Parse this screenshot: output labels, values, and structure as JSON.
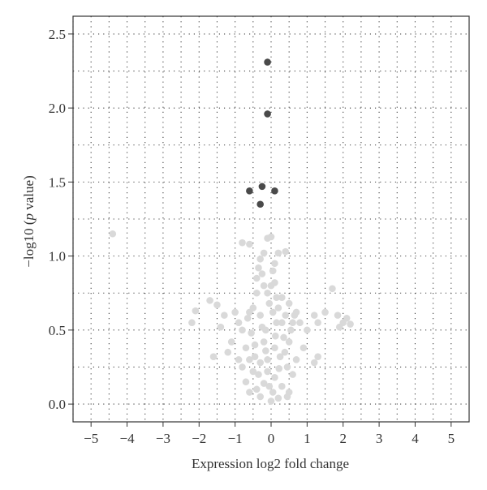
{
  "chart_data": {
    "type": "scatter",
    "title": "",
    "xlabel": "Expression log2 fold change",
    "ylabel_parts": [
      "−log10 (",
      "p",
      " value)"
    ],
    "xlim": [
      -5.5,
      5.5
    ],
    "ylim": [
      -0.12,
      2.62
    ],
    "xticks": [
      {
        "value": -5,
        "label": "−5"
      },
      {
        "value": -4,
        "label": "−4"
      },
      {
        "value": -3,
        "label": "−3"
      },
      {
        "value": -2,
        "label": "−2"
      },
      {
        "value": -1,
        "label": "−1"
      },
      {
        "value": 0,
        "label": "0"
      },
      {
        "value": 1,
        "label": "1"
      },
      {
        "value": 2,
        "label": "2"
      },
      {
        "value": 3,
        "label": "3"
      },
      {
        "value": 4,
        "label": "4"
      },
      {
        "value": 5,
        "label": "5"
      }
    ],
    "yticks": [
      {
        "value": 0.0,
        "label": "0.0"
      },
      {
        "value": 0.5,
        "label": "0.5"
      },
      {
        "value": 1.0,
        "label": "1.0"
      },
      {
        "value": 1.5,
        "label": "1.5"
      },
      {
        "value": 2.0,
        "label": "2.0"
      },
      {
        "value": 2.5,
        "label": "2.5"
      }
    ],
    "grid": {
      "x_step": 0.5,
      "y_step": 0.25,
      "style": "dotted"
    },
    "colors": {
      "significant": "#4a4a4a",
      "non_significant": "#d9d9d9",
      "grid": "#444444",
      "axis": "#333333"
    },
    "series": [
      {
        "color": "#4a4a4a",
        "points": [
          [
            -0.1,
            2.31
          ],
          [
            -0.1,
            1.96
          ],
          [
            -0.6,
            1.44
          ],
          [
            -0.25,
            1.47
          ],
          [
            0.1,
            1.44
          ],
          [
            -0.3,
            1.35
          ]
        ]
      },
      {
        "color": "#d9d9d9",
        "points": [
          [
            -4.4,
            1.15
          ],
          [
            -0.8,
            1.09
          ],
          [
            -0.6,
            1.08
          ],
          [
            -0.2,
            1.02
          ],
          [
            0.2,
            1.02
          ],
          [
            0.4,
            1.03
          ],
          [
            -0.1,
            1.12
          ],
          [
            0.0,
            1.13
          ],
          [
            -0.3,
            0.98
          ],
          [
            -0.35,
            0.92
          ],
          [
            0.1,
            0.95
          ],
          [
            -0.4,
            0.85
          ],
          [
            -0.25,
            0.88
          ],
          [
            0.05,
            0.9
          ],
          [
            0.1,
            0.82
          ],
          [
            -0.2,
            0.8
          ],
          [
            -0.4,
            0.75
          ],
          [
            0.15,
            0.72
          ],
          [
            -0.1,
            0.75
          ],
          [
            0.0,
            0.8
          ],
          [
            0.3,
            0.72
          ],
          [
            -2.2,
            0.55
          ],
          [
            -2.1,
            0.63
          ],
          [
            -1.7,
            0.7
          ],
          [
            -1.5,
            0.67
          ],
          [
            -1.3,
            0.6
          ],
          [
            -1.0,
            0.62
          ],
          [
            -0.9,
            0.55
          ],
          [
            -0.8,
            0.5
          ],
          [
            -0.6,
            0.62
          ],
          [
            -0.5,
            0.65
          ],
          [
            0.5,
            0.68
          ],
          [
            0.7,
            0.62
          ],
          [
            0.8,
            0.55
          ],
          [
            1.0,
            0.5
          ],
          [
            1.2,
            0.6
          ],
          [
            1.3,
            0.55
          ],
          [
            1.5,
            0.62
          ],
          [
            1.7,
            0.78
          ],
          [
            1.85,
            0.6
          ],
          [
            1.9,
            0.52
          ],
          [
            2.0,
            0.55
          ],
          [
            2.1,
            0.58
          ],
          [
            2.2,
            0.54
          ],
          [
            -1.4,
            0.52
          ],
          [
            0.6,
            0.55
          ],
          [
            -1.1,
            0.42
          ],
          [
            -1.2,
            0.35
          ],
          [
            -0.7,
            0.38
          ],
          [
            -0.9,
            0.3
          ],
          [
            0.5,
            0.42
          ],
          [
            0.9,
            0.38
          ],
          [
            -1.6,
            0.32
          ],
          [
            0.7,
            0.3
          ],
          [
            1.3,
            0.32
          ],
          [
            1.2,
            0.28
          ],
          [
            -0.8,
            0.25
          ],
          [
            -0.6,
            0.3
          ],
          [
            -0.5,
            0.22
          ],
          [
            0.45,
            0.25
          ],
          [
            0.6,
            0.2
          ],
          [
            -0.7,
            0.15
          ],
          [
            -0.4,
            0.1
          ],
          [
            0.3,
            0.12
          ],
          [
            0.5,
            0.08
          ],
          [
            -0.3,
            0.05
          ],
          [
            0.2,
            0.04
          ],
          [
            0.0,
            0.02
          ],
          [
            -0.2,
            0.14
          ],
          [
            0.1,
            0.18
          ],
          [
            -0.1,
            0.22
          ],
          [
            -0.3,
            0.28
          ],
          [
            0.25,
            0.32
          ],
          [
            -0.45,
            0.4
          ],
          [
            0.35,
            0.45
          ],
          [
            -0.15,
            0.5
          ],
          [
            0.15,
            0.55
          ],
          [
            -0.3,
            0.6
          ],
          [
            0.05,
            0.62
          ],
          [
            -0.05,
            0.68
          ],
          [
            0.2,
            0.65
          ],
          [
            -0.55,
            0.48
          ],
          [
            0.55,
            0.5
          ],
          [
            -0.65,
            0.58
          ],
          [
            0.65,
            0.6
          ],
          [
            -0.2,
            0.42
          ],
          [
            0.1,
            0.38
          ],
          [
            -0.1,
            0.3
          ],
          [
            0.05,
            0.08
          ],
          [
            -0.05,
            0.12
          ],
          [
            0.3,
            0.55
          ],
          [
            -0.35,
            0.2
          ],
          [
            0.4,
            0.6
          ],
          [
            -0.6,
            0.08
          ],
          [
            0.45,
            0.05
          ],
          [
            -0.15,
            0.36
          ],
          [
            0.12,
            0.46
          ],
          [
            -0.25,
            0.52
          ],
          [
            0.22,
            0.24
          ],
          [
            -0.45,
            0.32
          ],
          [
            0.38,
            0.35
          ]
        ]
      }
    ]
  }
}
